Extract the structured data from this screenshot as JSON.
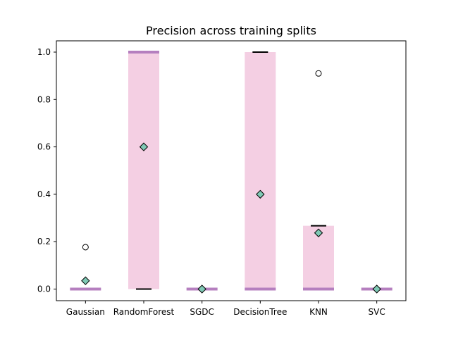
{
  "chart_data": {
    "type": "box",
    "title": "Precision across training splits",
    "xlabel": "",
    "ylabel": "",
    "ylim": [
      -0.05,
      1.05
    ],
    "yticks": [
      "0.0",
      "0.2",
      "0.4",
      "0.6",
      "0.8",
      "1.0"
    ],
    "categories": [
      "Gaussian",
      "RandomForest",
      "SGDC",
      "DecisionTree",
      "KNN",
      "SVC"
    ],
    "boxes": [
      {
        "q1": 0.0,
        "median": 0.0,
        "q3": 0.0,
        "whisker_low": 0.0,
        "whisker_high": 0.0,
        "mean": 0.035,
        "outliers": [
          0.177
        ]
      },
      {
        "q1": 0.0,
        "median": 1.0,
        "q3": 1.0,
        "whisker_low": 0.0,
        "whisker_high": 1.0,
        "mean": 0.6,
        "outliers": []
      },
      {
        "q1": 0.0,
        "median": 0.0,
        "q3": 0.0,
        "whisker_low": 0.0,
        "whisker_high": 0.0,
        "mean": 0.0,
        "outliers": []
      },
      {
        "q1": 0.0,
        "median": 0.0,
        "q3": 1.0,
        "whisker_low": 0.0,
        "whisker_high": 1.0,
        "mean": 0.4,
        "outliers": []
      },
      {
        "q1": 0.0,
        "median": 0.0,
        "q3": 0.267,
        "whisker_low": 0.0,
        "whisker_high": 0.267,
        "mean": 0.237,
        "outliers": [
          0.91
        ]
      },
      {
        "q1": 0.0,
        "median": 0.0,
        "q3": 0.0,
        "whisker_low": 0.0,
        "whisker_high": 0.0,
        "mean": 0.0,
        "outliers": []
      }
    ],
    "colors": {
      "box_fill": "#f4cfe3",
      "median": "#b57fbf",
      "cap": "#000000",
      "mean_marker": "#7fc9b5",
      "outlier_edge": "#000000"
    },
    "grid": false,
    "legend": "none"
  }
}
